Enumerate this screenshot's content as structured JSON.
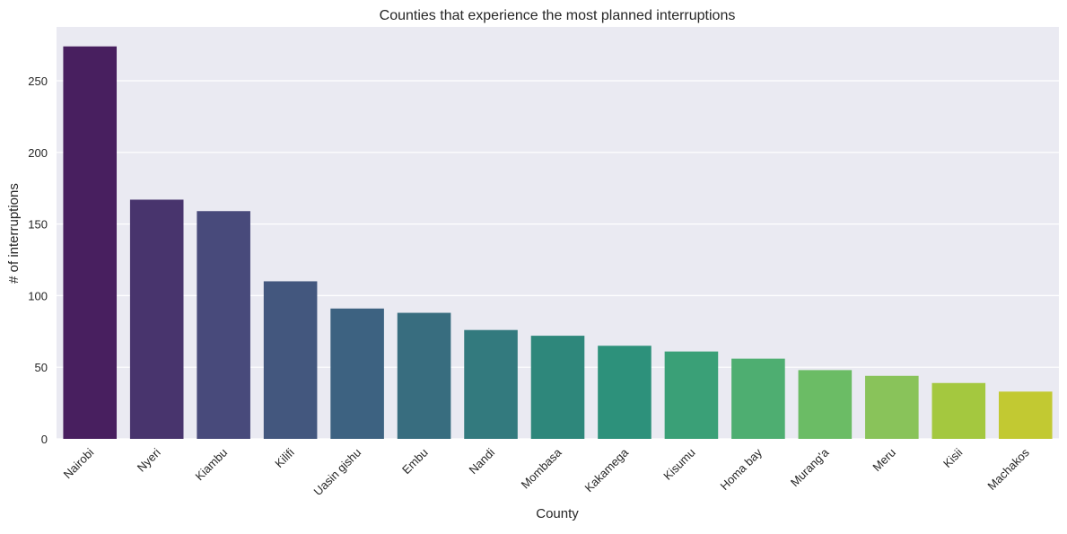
{
  "chart_data": {
    "type": "bar",
    "title": "Counties that experience the most planned interruptions",
    "xlabel": "County",
    "ylabel": "# of interruptions",
    "categories": [
      "Nairobi",
      "Nyeri",
      "Kiambu",
      "Kilifi",
      "Uasin gishu",
      "Embu",
      "Nandi",
      "Mombasa",
      "Kakamega",
      "Kisumu",
      "Homa bay",
      "Murang'a",
      "Meru",
      "Kisii",
      "Machakos"
    ],
    "values": [
      274,
      167,
      159,
      110,
      91,
      88,
      76,
      72,
      65,
      61,
      56,
      48,
      44,
      39,
      33
    ],
    "colors": [
      "#481f5f",
      "#48346d",
      "#484a7b",
      "#43577e",
      "#3d6281",
      "#386d7f",
      "#337a7e",
      "#2e877b",
      "#2d917b",
      "#3aa077",
      "#4eae71",
      "#6bbc65",
      "#89c35a",
      "#a4c83f",
      "#c2c932"
    ],
    "yticks": [
      0,
      50,
      100,
      150,
      200,
      250
    ],
    "ylim": [
      0,
      287.6
    ],
    "grid": true,
    "background": "#eaeaf2"
  }
}
